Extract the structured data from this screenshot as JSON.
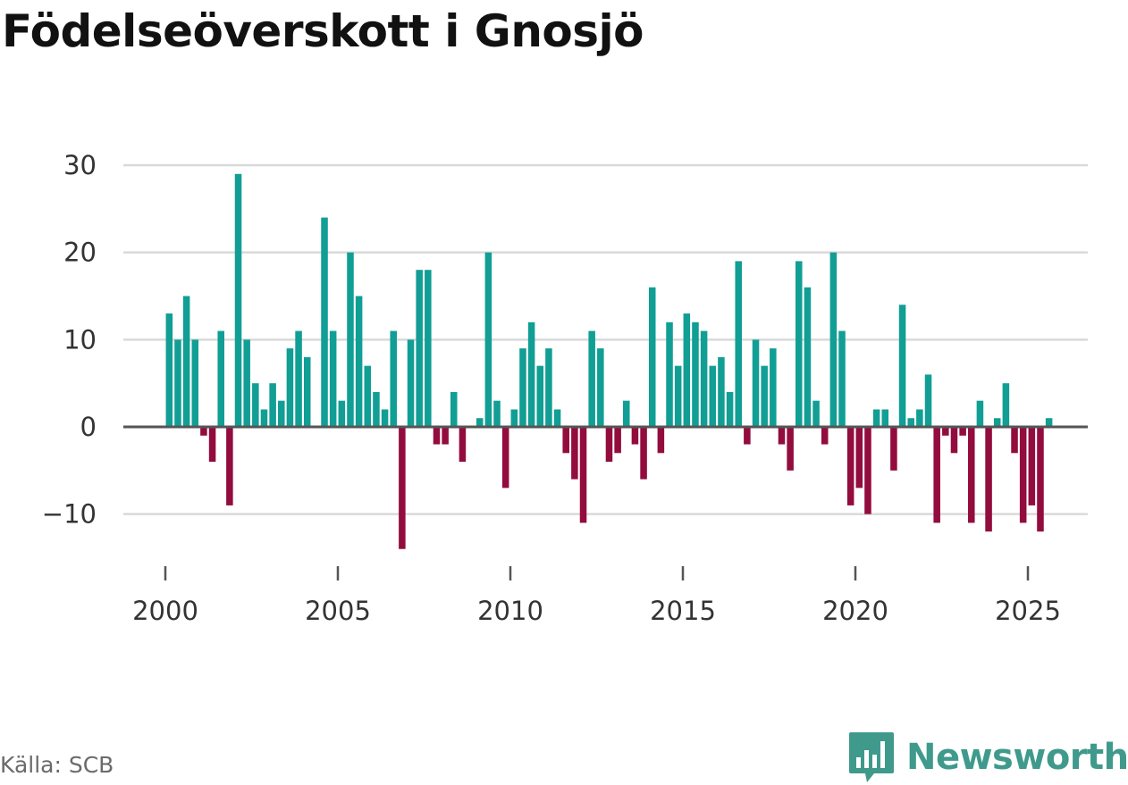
{
  "colors": {
    "positive": "#119e95",
    "negative": "#930c3e",
    "brand": "#3f9a8c",
    "grid": "#d9d9d9",
    "zero": "#555555"
  },
  "source": "Källa: SCB",
  "brand": {
    "name": "Newsworthy",
    "icon": "newsworthy-logo-icon"
  },
  "chart_data": {
    "type": "bar",
    "title": "Födelseöverskott i Gnosjö",
    "xlabel": "",
    "ylabel": "",
    "frequency": "quarterly",
    "start": {
      "year": 2000,
      "quarter": 1
    },
    "ylim": [
      -15,
      30
    ],
    "yticks": [
      {
        "value": 30,
        "label": "30"
      },
      {
        "value": 20,
        "label": "20"
      },
      {
        "value": 10,
        "label": "10"
      },
      {
        "value": 0,
        "label": "0"
      },
      {
        "value": -10,
        "label": "−10"
      }
    ],
    "xticks": [
      {
        "value": 2000,
        "label": "2000"
      },
      {
        "value": 2005,
        "label": "2005"
      },
      {
        "value": 2010,
        "label": "2010"
      },
      {
        "value": 2015,
        "label": "2015"
      },
      {
        "value": 2020,
        "label": "2020"
      },
      {
        "value": 2025,
        "label": "2025"
      }
    ],
    "values": [
      13,
      10,
      15,
      10,
      -1,
      -4,
      11,
      -9,
      29,
      10,
      5,
      2,
      5,
      3,
      9,
      11,
      8,
      0,
      24,
      11,
      3,
      20,
      15,
      7,
      4,
      2,
      11,
      -14,
      10,
      18,
      18,
      -2,
      -2,
      4,
      -4,
      0,
      1,
      20,
      3,
      -7,
      2,
      9,
      12,
      7,
      9,
      2,
      -3,
      -6,
      -11,
      11,
      9,
      -4,
      -3,
      3,
      -2,
      -6,
      16,
      -3,
      12,
      7,
      13,
      12,
      11,
      7,
      8,
      4,
      19,
      -2,
      10,
      7,
      9,
      -2,
      -5,
      19,
      16,
      3,
      -2,
      20,
      11,
      -9,
      -7,
      -10,
      2,
      2,
      -5,
      14,
      1,
      2,
      6,
      -11,
      -1,
      -3,
      -1,
      -11,
      3,
      -12,
      1,
      5,
      -3,
      -11,
      -9,
      -12,
      1
    ]
  }
}
